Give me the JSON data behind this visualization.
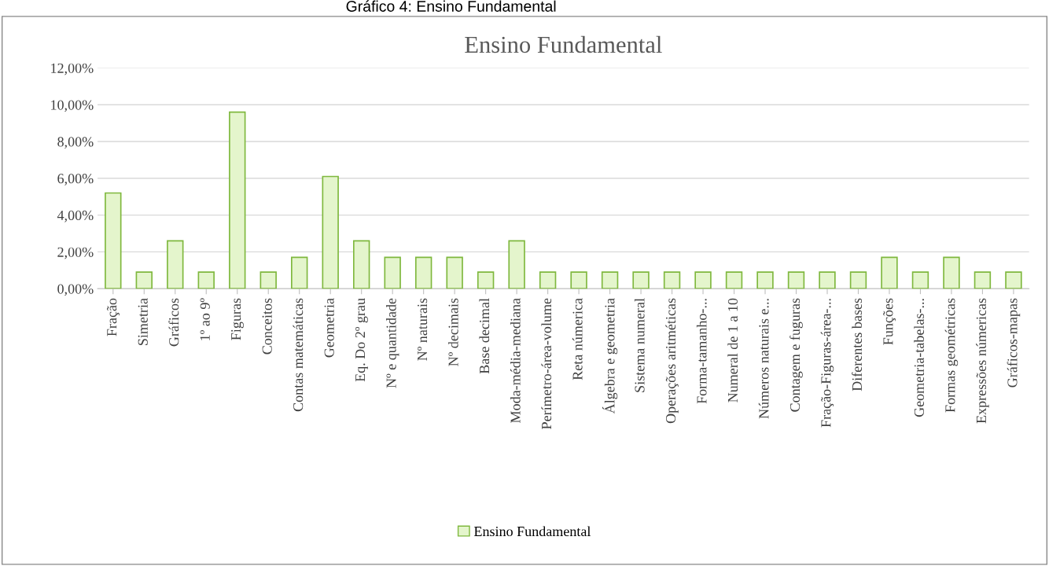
{
  "chart_data": {
    "type": "bar",
    "title": "Ensino Fundamental",
    "annotations": [
      "Gráfico 4: Ensino Fundamental"
    ],
    "categories": [
      "Fração",
      "Simetria",
      "Gráficos",
      "1º ao 9º",
      "Figuras",
      "Conceitos",
      "Contas matemáticas",
      "Geometria",
      "Eq. Do 2º grau",
      "Nº e quantidade",
      "Nº naturais",
      "Nº decimais",
      "Base decimal",
      "Moda-média-mediana",
      "Perímetro-área-volume",
      "Reta númerica",
      "Álgebra e geometria",
      "Sistema numeral",
      "Operações aritméticas",
      "Forma-tamanho-...",
      "Numeral de 1 a 10",
      "Números naturais e...",
      "Contagem e fuguras",
      "Fração-Figuras-área-...",
      "Diferentes bases",
      "Funções",
      "Geometria-tabelas-...",
      "Formas geométricas",
      "Expressões númericas",
      "Gráficos-mapas"
    ],
    "series": [
      {
        "name": "Ensino Fundamental",
        "color": "#e4f5cc",
        "values": [
          5.2,
          0.9,
          2.6,
          0.9,
          9.6,
          0.9,
          1.7,
          6.1,
          2.6,
          1.7,
          1.7,
          1.7,
          0.9,
          2.6,
          0.9,
          0.9,
          0.9,
          0.9,
          0.9,
          0.9,
          0.9,
          0.9,
          0.9,
          0.9,
          0.9,
          1.7,
          0.9,
          1.7,
          0.9,
          0.9
        ]
      }
    ],
    "ylim": [
      0,
      12
    ],
    "yticks": [
      {
        "value": 0,
        "label": "0,00%"
      },
      {
        "value": 2,
        "label": "2,00%"
      },
      {
        "value": 4,
        "label": "4,00%"
      },
      {
        "value": 6,
        "label": "6,00%"
      },
      {
        "value": 8,
        "label": "8,00%"
      },
      {
        "value": 10,
        "label": "10,00%"
      },
      {
        "value": 12,
        "label": "12,00%"
      }
    ],
    "grid": "y",
    "legend": "bottom"
  }
}
